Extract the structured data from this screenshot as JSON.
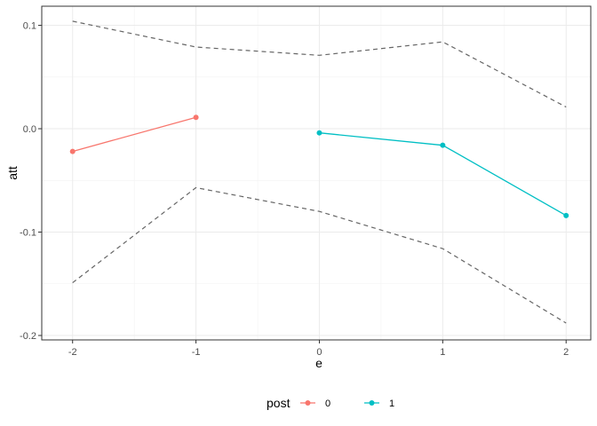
{
  "chart_data": {
    "type": "line",
    "xlabel": "e",
    "ylabel": "att",
    "xlim": [
      -2.25,
      2.2
    ],
    "ylim": [
      -0.2043,
      0.1185
    ],
    "x_ticks": [
      -2,
      -1,
      0,
      1,
      2
    ],
    "x_tick_labels": [
      "-2",
      "-1",
      "0",
      "1",
      "2"
    ],
    "y_ticks": [
      0.1,
      0.0,
      -0.1,
      -0.2
    ],
    "y_tick_labels": [
      "0.1",
      "0.0",
      "-0.1",
      "-0.2"
    ],
    "grid": true,
    "legend": {
      "title": "post",
      "position": "bottom",
      "entries": [
        "0",
        "1"
      ]
    },
    "series": [
      {
        "name": "0",
        "color": "#F8766D",
        "x": [
          -2,
          -1
        ],
        "y": [
          -0.022,
          0.011
        ]
      },
      {
        "name": "1",
        "color": "#00BFC4",
        "x": [
          0,
          1,
          2
        ],
        "y": [
          -0.004,
          -0.016,
          -0.084
        ]
      }
    ],
    "bands": {
      "style": "dashed",
      "color": "#666666",
      "x": [
        -2,
        -1,
        0,
        1,
        2
      ],
      "upper": [
        0.104,
        0.079,
        0.071,
        0.084,
        0.021
      ],
      "lower": [
        -0.149,
        -0.057,
        -0.08,
        -0.116,
        -0.188
      ]
    }
  }
}
